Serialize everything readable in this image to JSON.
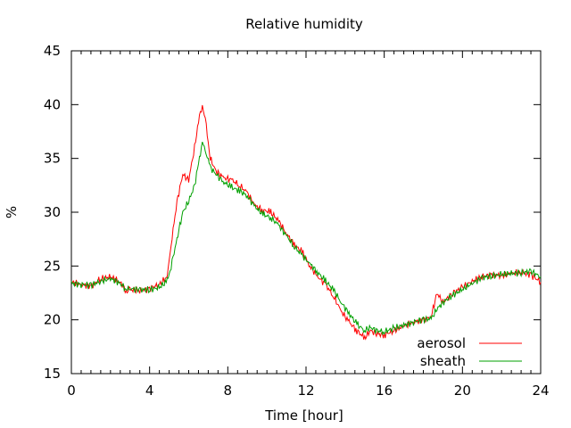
{
  "chart_data": {
    "type": "line",
    "title": "Relative humidity",
    "xlabel": "Time [hour]",
    "ylabel": "%",
    "xlim": [
      0,
      24
    ],
    "ylim": [
      15,
      45
    ],
    "x_ticks": [
      0,
      4,
      8,
      12,
      16,
      20,
      24
    ],
    "y_ticks": [
      15,
      20,
      25,
      30,
      35,
      40,
      45
    ],
    "grid": false,
    "legend_position": "bottom-right",
    "series": [
      {
        "name": "aerosol",
        "color": "#ff0000",
        "x": [
          0,
          0.5,
          1,
          1.5,
          2,
          2.3,
          2.6,
          2.8,
          3,
          3.5,
          4,
          4.5,
          4.9,
          5.1,
          5.4,
          5.7,
          6,
          6.3,
          6.5,
          6.7,
          6.9,
          7.1,
          7.4,
          7.8,
          8.2,
          8.6,
          9,
          9.4,
          9.8,
          10.2,
          10.6,
          11,
          11.4,
          11.8,
          12.2,
          12.6,
          13,
          13.4,
          13.8,
          14.2,
          14.6,
          15,
          15.3,
          15.6,
          16,
          16.5,
          17,
          17.5,
          18,
          18.4,
          18.7,
          19,
          19.5,
          20,
          20.5,
          21,
          21.5,
          22,
          22.5,
          23,
          23.5,
          24
        ],
        "y": [
          23.5,
          23.3,
          23.1,
          23.8,
          24.0,
          23.7,
          23.3,
          22.6,
          22.8,
          22.7,
          22.9,
          23.3,
          24.0,
          27.0,
          31.0,
          33.5,
          33.0,
          36.0,
          38.5,
          40.0,
          38.0,
          35.0,
          33.8,
          33.2,
          33.0,
          32.5,
          31.8,
          30.6,
          30.2,
          30.0,
          29.2,
          28.0,
          27.0,
          26.3,
          25.0,
          24.0,
          23.3,
          22.2,
          20.8,
          19.8,
          19.0,
          18.3,
          19.0,
          18.7,
          18.6,
          19.0,
          19.4,
          19.8,
          20.0,
          20.3,
          22.5,
          21.6,
          22.5,
          23.0,
          23.6,
          24.0,
          24.2,
          24.1,
          24.3,
          24.4,
          24.2,
          23.5
        ]
      },
      {
        "name": "sheath",
        "color": "#00a000",
        "x": [
          0,
          0.5,
          1,
          1.5,
          2,
          2.3,
          2.6,
          2.8,
          3,
          3.5,
          4,
          4.5,
          4.9,
          5.1,
          5.4,
          5.7,
          6,
          6.3,
          6.5,
          6.7,
          6.9,
          7.1,
          7.4,
          7.8,
          8.2,
          8.6,
          9,
          9.4,
          9.8,
          10.2,
          10.6,
          11,
          11.4,
          11.8,
          12.2,
          12.6,
          13,
          13.4,
          13.8,
          14.2,
          14.6,
          15,
          15.3,
          15.6,
          16,
          16.5,
          17,
          17.5,
          18,
          18.4,
          18.7,
          19,
          19.5,
          20,
          20.5,
          21,
          21.5,
          22,
          22.5,
          23,
          23.5,
          24
        ],
        "y": [
          23.4,
          23.3,
          23.2,
          23.6,
          23.8,
          23.6,
          23.2,
          22.8,
          22.9,
          22.8,
          22.8,
          23.0,
          23.6,
          25.0,
          27.5,
          30.0,
          31.0,
          32.5,
          34.5,
          36.5,
          35.5,
          34.2,
          33.5,
          32.8,
          32.3,
          32.0,
          31.5,
          30.5,
          29.8,
          29.5,
          28.8,
          27.8,
          26.8,
          26.0,
          25.2,
          24.4,
          23.6,
          22.8,
          21.6,
          20.6,
          19.6,
          19.0,
          19.3,
          19.0,
          18.9,
          19.2,
          19.5,
          19.8,
          20.0,
          20.1,
          21.0,
          21.6,
          22.3,
          22.8,
          23.4,
          23.9,
          24.1,
          24.2,
          24.3,
          24.4,
          24.5,
          24.0
        ]
      }
    ]
  }
}
